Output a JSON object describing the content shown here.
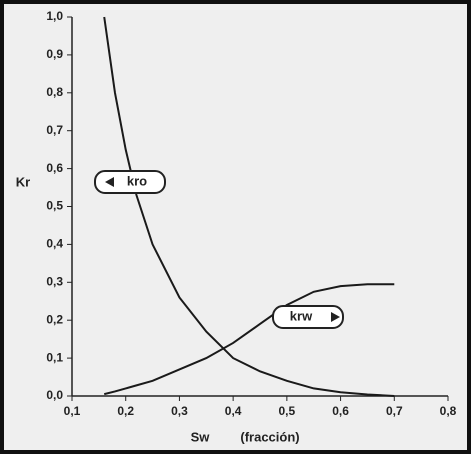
{
  "chart_data": {
    "type": "line",
    "x_label": "Sw",
    "x_label_note": "(fracción)",
    "y_label": "Kr",
    "x": [
      0.16,
      0.18,
      0.2,
      0.22,
      0.25,
      0.3,
      0.35,
      0.4,
      0.45,
      0.5,
      0.55,
      0.6,
      0.65,
      0.7
    ],
    "series": [
      {
        "name": "kro",
        "color": "#1a1a1a",
        "values": [
          1.0,
          0.8,
          0.65,
          0.53,
          0.4,
          0.26,
          0.17,
          0.1,
          0.065,
          0.04,
          0.02,
          0.01,
          0.004,
          0.0
        ]
      },
      {
        "name": "krw",
        "color": "#1a1a1a",
        "values": [
          0.005,
          0.012,
          0.02,
          0.028,
          0.04,
          0.07,
          0.1,
          0.14,
          0.19,
          0.24,
          0.275,
          0.29,
          0.295,
          0.295
        ]
      }
    ],
    "xlim": [
      0.1,
      0.8
    ],
    "xticks": [
      {
        "value": 0.1,
        "label": "0,1"
      },
      {
        "value": 0.2,
        "label": "0,2"
      },
      {
        "value": 0.3,
        "label": "0,3"
      },
      {
        "value": 0.4,
        "label": "0,4"
      },
      {
        "value": 0.5,
        "label": "0,5"
      },
      {
        "value": 0.6,
        "label": "0,6"
      },
      {
        "value": 0.7,
        "label": "0,7"
      },
      {
        "value": 0.8,
        "label": "0,8"
      }
    ],
    "ylim": [
      0.0,
      1.0
    ],
    "yticks": [
      {
        "value": 0.0,
        "label": "0,0"
      },
      {
        "value": 0.1,
        "label": "0,1"
      },
      {
        "value": 0.2,
        "label": "0,2"
      },
      {
        "value": 0.3,
        "label": "0,3"
      },
      {
        "value": 0.4,
        "label": "0,4"
      },
      {
        "value": 0.5,
        "label": "0,5"
      },
      {
        "value": 0.6,
        "label": "0,6"
      },
      {
        "value": 0.7,
        "label": "0,7"
      },
      {
        "value": 0.8,
        "label": "0,8"
      },
      {
        "value": 0.9,
        "label": "0,9"
      },
      {
        "value": 1.0,
        "label": "1,0"
      }
    ],
    "grid": false
  }
}
